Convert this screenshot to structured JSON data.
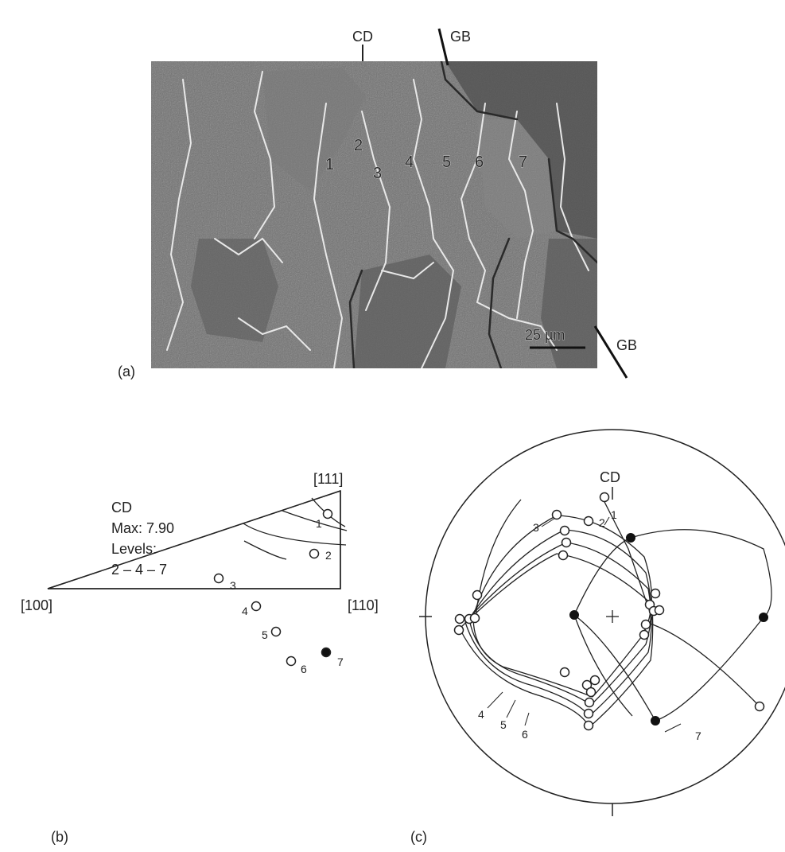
{
  "panel_a": {
    "panel_label": "(a)",
    "cd_label": "CD",
    "gb_top_label": "GB",
    "gb_right_label": "GB",
    "scale_bar": "25 µm",
    "grain_numbers": [
      "1",
      "2",
      "3",
      "4",
      "5",
      "6",
      "7"
    ]
  },
  "panel_b": {
    "panel_label": "(b)",
    "corner_top": "[111]",
    "corner_left": "[100]",
    "corner_right": "[110]",
    "info_title": "CD",
    "info_max": "Max: 7.90",
    "info_levels_label": "Levels:",
    "info_levels_value": "2 – 4 – 7",
    "points": [
      {
        "label": "1",
        "filled": false
      },
      {
        "label": "2",
        "filled": false
      },
      {
        "label": "3",
        "filled": false
      },
      {
        "label": "4",
        "filled": false
      },
      {
        "label": "5",
        "filled": false
      },
      {
        "label": "6",
        "filled": false
      },
      {
        "label": "7",
        "filled": true
      }
    ]
  },
  "panel_c": {
    "panel_label": "(c)",
    "cd_label": "CD",
    "labels": [
      "1",
      "2",
      "3",
      "4",
      "5",
      "6",
      "7"
    ]
  },
  "colors": {
    "micrograph_base": "#6f6f6f",
    "line": "#222222"
  }
}
